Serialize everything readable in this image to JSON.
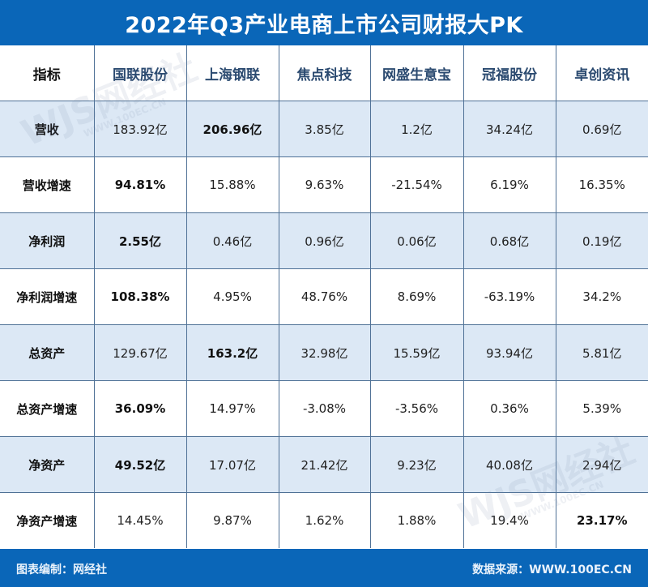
{
  "title": "2022年Q3产业电商上市公司财报大PK",
  "table": {
    "headers": [
      "指标",
      "国联股份",
      "上海钢联",
      "焦点科技",
      "网盛生意宝",
      "冠福股份",
      "卓创资讯"
    ],
    "rows": [
      {
        "metric": "营收",
        "values": [
          "183.92亿",
          "206.96亿",
          "3.85亿",
          "1.2亿",
          "34.24亿",
          "0.69亿"
        ],
        "bold_index": 1
      },
      {
        "metric": "营收增速",
        "values": [
          "94.81%",
          "15.88%",
          "9.63%",
          "-21.54%",
          "6.19%",
          "16.35%"
        ],
        "bold_index": 0
      },
      {
        "metric": "净利润",
        "values": [
          "2.55亿",
          "0.46亿",
          "0.96亿",
          "0.06亿",
          "0.68亿",
          "0.19亿"
        ],
        "bold_index": 0
      },
      {
        "metric": "净利润增速",
        "values": [
          "108.38%",
          "4.95%",
          "48.76%",
          "8.69%",
          "-63.19%",
          "34.2%"
        ],
        "bold_index": 0
      },
      {
        "metric": "总资产",
        "values": [
          "129.67亿",
          "163.2亿",
          "32.98亿",
          "15.59亿",
          "93.94亿",
          "5.81亿"
        ],
        "bold_index": 1
      },
      {
        "metric": "总资产增速",
        "values": [
          "36.09%",
          "14.97%",
          "-3.08%",
          "-3.56%",
          "0.36%",
          "5.39%"
        ],
        "bold_index": 0
      },
      {
        "metric": "净资产",
        "values": [
          "49.52亿",
          "17.07亿",
          "21.42亿",
          "9.23亿",
          "40.08亿",
          "2.94亿"
        ],
        "bold_index": 0
      },
      {
        "metric": "净资产增速",
        "values": [
          "14.45%",
          "9.87%",
          "1.62%",
          "1.88%",
          "19.4%",
          "23.17%"
        ],
        "bold_index": 5
      }
    ]
  },
  "footer": {
    "left": "图表编制：网经社",
    "right": "数据来源：WWW.100EC.CN"
  },
  "watermark": {
    "logo": "WJS网经社",
    "url": "WWW.100EC.CN"
  },
  "colors": {
    "brand_blue": "#0A66B8",
    "row_shade": "#DCE8F5",
    "grid_line": "#4F7196"
  }
}
